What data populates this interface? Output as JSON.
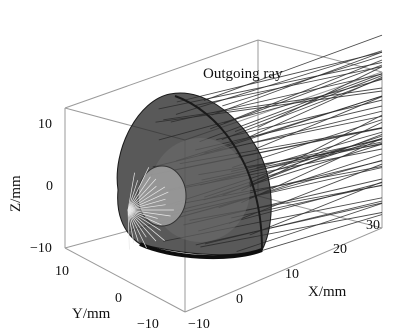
{
  "figure": {
    "annotation": "Outgoing ray",
    "z_axis": {
      "label": "Z/mm",
      "ticks": [
        "10",
        "0",
        "−10"
      ]
    },
    "y_axis": {
      "label": "Y/mm",
      "ticks": [
        "10",
        "0",
        "−10"
      ]
    },
    "x_axis": {
      "label": "X/mm",
      "ticks": [
        "−10",
        "0",
        "10",
        "20",
        "30"
      ]
    }
  },
  "colors": {
    "box": "#9a9a9a",
    "rays": "#2e2e2e",
    "reflector_dark": "#2a2a2a",
    "reflector_mid": "#707070"
  }
}
